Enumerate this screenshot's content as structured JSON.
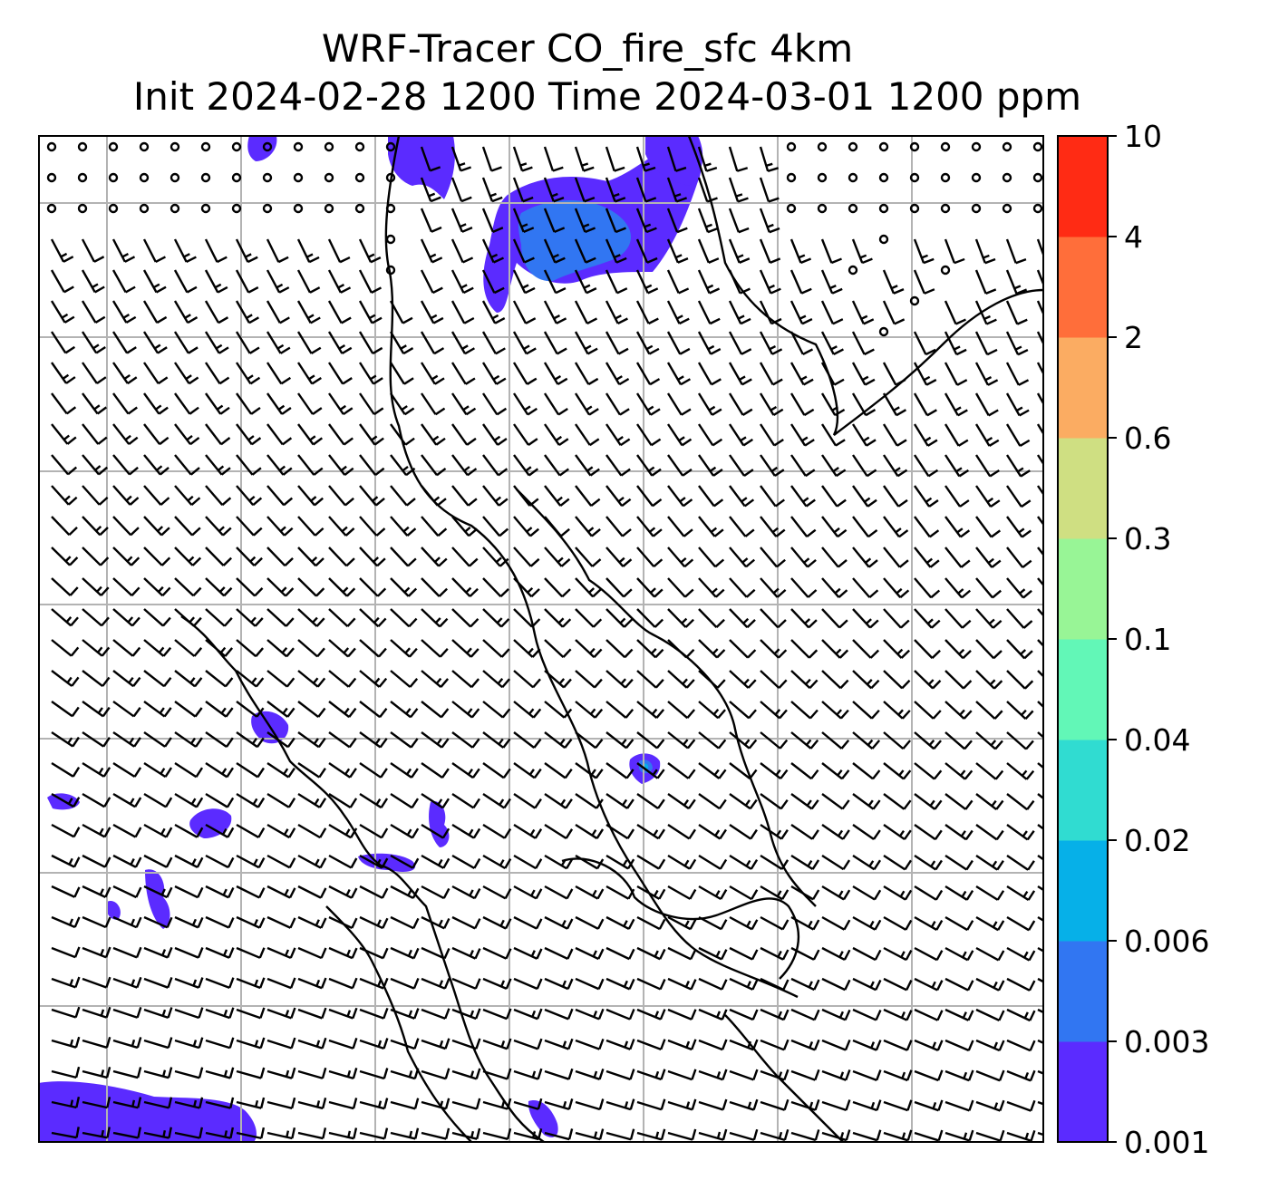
{
  "chart_data": {
    "type": "heatmap",
    "title_line1": "WRF-Tracer CO_fire_sfc 4km",
    "title_line2": "Init 2024-02-28 1200 Time 2024-03-01 1200 ppm",
    "variable": "CO_fire_sfc",
    "units": "ppm",
    "grid": true,
    "colorbar": {
      "placement": "right",
      "tick_labels": [
        "0.001",
        "0.003",
        "0.006",
        "0.02",
        "0.04",
        "0.1",
        "0.3",
        "0.6",
        "2",
        "4",
        "10"
      ],
      "levels": [
        0.001,
        0.003,
        0.006,
        0.02,
        0.04,
        0.1,
        0.3,
        0.6,
        2,
        4,
        10
      ],
      "colors": [
        "#5b2bff",
        "#3176f2",
        "#06b0e8",
        "#30dcd1",
        "#62f7b7",
        "#98f596",
        "#cfdf82",
        "#fbac62",
        "#ff6e3a",
        "#ff2b14"
      ]
    },
    "plumes": [
      {
        "region": "north-center",
        "max_level": "0.003-0.006"
      },
      {
        "region": "north-left",
        "max_level": "0.001-0.003"
      },
      {
        "region": "center",
        "max_level": "0.006-0.02"
      },
      {
        "region": "west",
        "max_level": "0.001-0.003"
      },
      {
        "region": "southwest",
        "max_level": "0.001-0.003"
      },
      {
        "region": "south",
        "max_level": "0.001-0.003"
      }
    ],
    "overlays": [
      "wind barbs",
      "coastlines",
      "lat/lon gridlines"
    ]
  }
}
